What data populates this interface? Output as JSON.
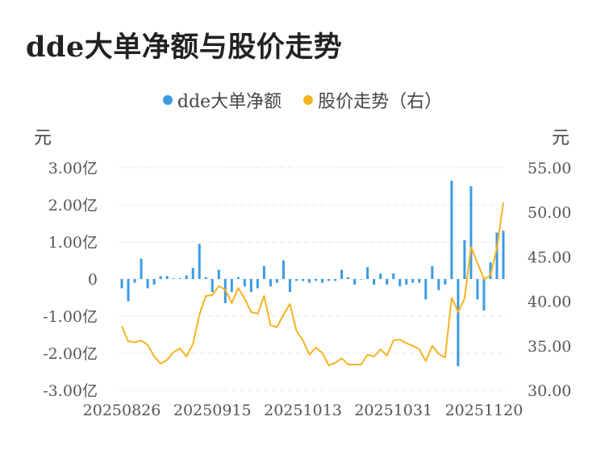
{
  "title": "dde大单净额与股价走势",
  "legend": {
    "series1": "dde大单净额",
    "series2": "股价走势（右）"
  },
  "colors": {
    "bar": "#3a9be3",
    "line": "#f5b320",
    "grid": "#e8e8e8"
  },
  "chart_data": {
    "type": "bar+line",
    "title": "dde大单净额与股价走势",
    "left_unit": "元",
    "right_unit": "元",
    "left_axis": {
      "ylim": [
        -3.0,
        3.0
      ],
      "ticks": [
        3,
        2,
        1,
        0,
        -1,
        -2,
        -3
      ],
      "tick_labels": [
        "3.00亿",
        "2.00亿",
        "1.00亿",
        "0",
        "-1.00亿",
        "-2.00亿",
        "-3.00亿"
      ]
    },
    "right_axis": {
      "ylim": [
        30,
        55
      ],
      "ticks": [
        55,
        50,
        45,
        40,
        35,
        30
      ],
      "tick_labels": [
        "55.00",
        "50.00",
        "45.00",
        "40.00",
        "35.00",
        "30.00"
      ]
    },
    "x_tick_labels": [
      "20250826",
      "20250915",
      "20251013",
      "20251031",
      "20251120"
    ],
    "x_tick_index": [
      0,
      14,
      28,
      42,
      56
    ],
    "grid": true,
    "legend_position": "top-center",
    "series": [
      {
        "name": "dde大单净额",
        "kind": "bar",
        "axis": "left",
        "values": [
          -0.25,
          -0.6,
          -0.1,
          0.55,
          -0.25,
          -0.15,
          0.08,
          0.08,
          0.02,
          0.02,
          0.1,
          0.3,
          0.95,
          0.05,
          -0.35,
          0.25,
          -0.65,
          -0.35,
          0.05,
          -0.2,
          -0.35,
          -0.25,
          0.35,
          -0.2,
          -0.1,
          0.5,
          -0.35,
          -0.05,
          -0.05,
          -0.1,
          -0.05,
          -0.1,
          -0.05,
          -0.05,
          0.25,
          0.05,
          -0.15,
          0.0,
          0.32,
          -0.15,
          0.15,
          -0.15,
          0.15,
          -0.2,
          -0.15,
          -0.1,
          -0.1,
          -0.55,
          0.35,
          -0.3,
          -0.15,
          2.65,
          -2.35,
          1.05,
          2.5,
          -0.55,
          -0.85,
          0.45,
          1.25,
          1.3
        ]
      },
      {
        "name": "股价走势（右）",
        "kind": "line",
        "axis": "right",
        "values": [
          37.2,
          35.5,
          35.4,
          35.6,
          35.1,
          33.8,
          33.0,
          33.4,
          34.3,
          34.7,
          33.8,
          35.2,
          38.5,
          40.6,
          40.7,
          41.7,
          41.3,
          39.8,
          41.5,
          40.3,
          38.8,
          38.6,
          40.6,
          37.3,
          37.1,
          38.5,
          39.7,
          36.7,
          35.6,
          34.0,
          34.8,
          34.2,
          32.8,
          33.1,
          33.6,
          32.9,
          32.9,
          32.9,
          34.0,
          33.8,
          34.6,
          33.9,
          35.6,
          35.7,
          35.3,
          35.0,
          34.6,
          33.3,
          35.0,
          34.1,
          33.7,
          40.4,
          38.8,
          40.3,
          46.1,
          44.3,
          42.5,
          42.9,
          46.0,
          51.1
        ]
      }
    ]
  }
}
